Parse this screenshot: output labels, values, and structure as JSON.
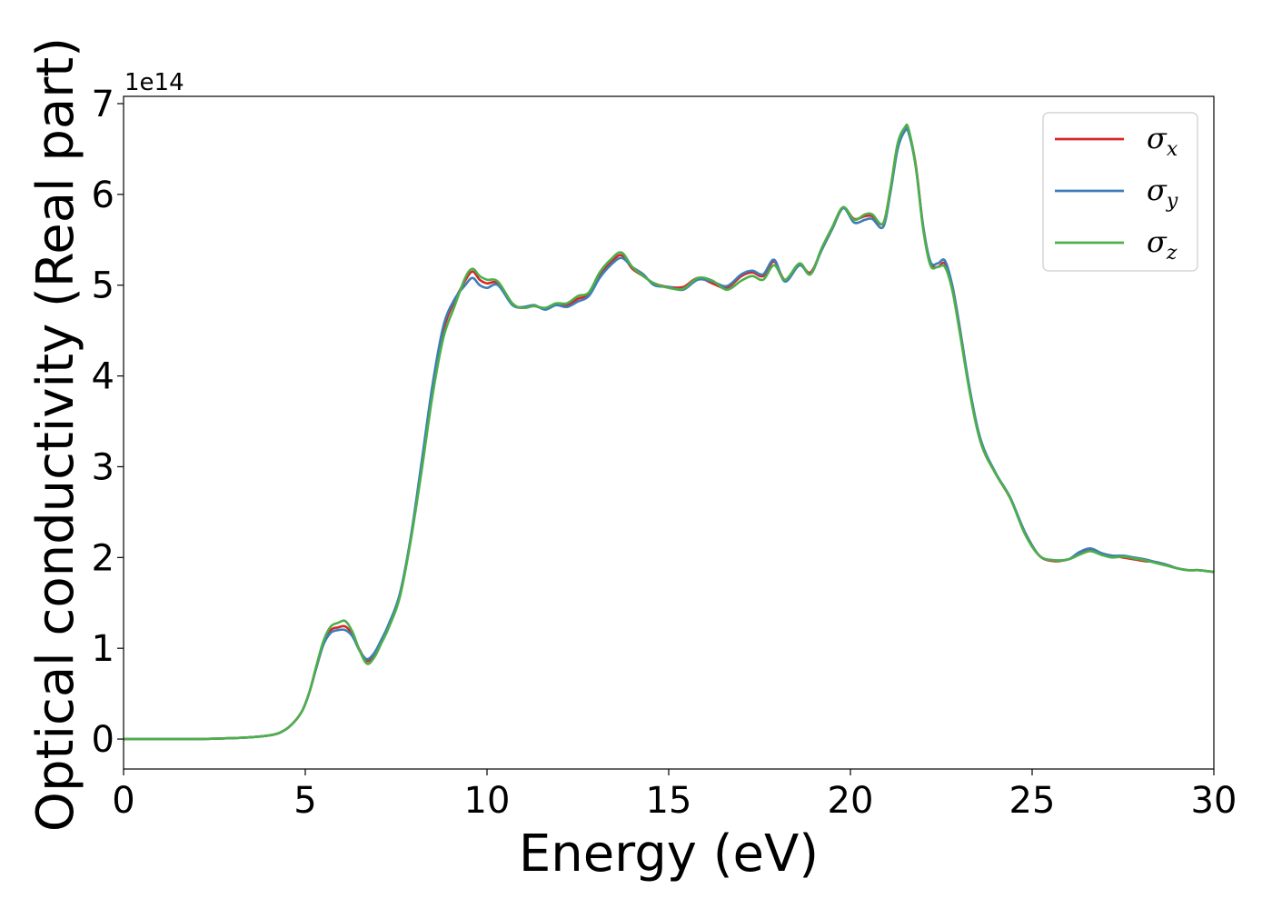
{
  "chart_data": {
    "type": "line",
    "xlabel": "Energy (eV)",
    "ylabel": "Optical conductivity (Real part)",
    "offset_label": "1e14",
    "xlim": [
      0,
      30
    ],
    "ylim": [
      -0.33,
      7.08
    ],
    "y_scale_factor": 100000000000000.0,
    "xticks": [
      0,
      5,
      10,
      15,
      20,
      25,
      30
    ],
    "yticks": [
      0,
      1,
      2,
      3,
      4,
      5,
      6,
      7
    ],
    "grid": false,
    "legend": {
      "position": "top-right",
      "entries": [
        {
          "symbol": "σ",
          "sub": "x"
        },
        {
          "symbol": "σ",
          "sub": "y"
        },
        {
          "symbol": "σ",
          "sub": "z"
        }
      ]
    },
    "series": [
      {
        "name": "σx",
        "color": "#d62728",
        "x": [
          0,
          1,
          2,
          3,
          3.5,
          4,
          4.3,
          4.6,
          4.9,
          5.1,
          5.3,
          5.5,
          5.7,
          5.9,
          6.1,
          6.3,
          6.5,
          6.7,
          6.9,
          7.1,
          7.3,
          7.6,
          7.9,
          8.2,
          8.5,
          8.8,
          9.1,
          9.4,
          9.6,
          9.8,
          10,
          10.3,
          10.7,
          11,
          11.3,
          11.6,
          11.9,
          12.2,
          12.5,
          12.8,
          13.1,
          13.4,
          13.7,
          14,
          14.3,
          14.6,
          15,
          15.4,
          15.8,
          16.2,
          16.6,
          17,
          17.3,
          17.6,
          17.9,
          18.2,
          18.6,
          18.9,
          19.2,
          19.5,
          19.8,
          20.1,
          20.4,
          20.6,
          20.9,
          21.1,
          21.3,
          21.5,
          21.6,
          21.8,
          22,
          22.2,
          22.4,
          22.6,
          22.8,
          23,
          23.3,
          23.6,
          24,
          24.4,
          24.8,
          25.2,
          25.6,
          26,
          26.3,
          26.6,
          26.9,
          27.2,
          27.5,
          27.8,
          28.1,
          28.4,
          28.7,
          29,
          29.3,
          29.6,
          30
        ],
        "y": [
          0,
          0,
          0,
          0.01,
          0.02,
          0.04,
          0.07,
          0.15,
          0.3,
          0.5,
          0.78,
          1.05,
          1.2,
          1.23,
          1.24,
          1.15,
          0.98,
          0.86,
          0.92,
          1.08,
          1.25,
          1.58,
          2.2,
          3.0,
          3.85,
          4.5,
          4.82,
          5.05,
          5.15,
          5.06,
          5.02,
          5.02,
          4.79,
          4.75,
          4.77,
          4.74,
          4.79,
          4.78,
          4.85,
          4.9,
          5.12,
          5.25,
          5.33,
          5.18,
          5.1,
          5.02,
          4.98,
          4.98,
          5.08,
          5.02,
          4.97,
          5.1,
          5.14,
          5.1,
          5.26,
          5.06,
          5.22,
          5.14,
          5.38,
          5.62,
          5.85,
          5.73,
          5.76,
          5.76,
          5.68,
          6.06,
          6.55,
          6.72,
          6.7,
          6.32,
          5.65,
          5.25,
          5.2,
          5.24,
          5.0,
          4.55,
          3.8,
          3.25,
          2.92,
          2.65,
          2.28,
          2.02,
          1.96,
          1.98,
          2.04,
          2.08,
          2.04,
          2.02,
          2.0,
          1.98,
          1.96,
          1.95,
          1.92,
          1.88,
          1.86,
          1.86,
          1.84
        ]
      },
      {
        "name": "σy",
        "color": "#3d7eb8",
        "x": [
          0,
          1,
          2,
          3,
          3.5,
          4,
          4.3,
          4.6,
          4.9,
          5.1,
          5.3,
          5.5,
          5.7,
          5.9,
          6.1,
          6.3,
          6.5,
          6.7,
          6.9,
          7.1,
          7.3,
          7.6,
          7.9,
          8.2,
          8.5,
          8.8,
          9.1,
          9.4,
          9.6,
          9.8,
          10,
          10.3,
          10.7,
          11,
          11.3,
          11.6,
          11.9,
          12.2,
          12.5,
          12.8,
          13.1,
          13.4,
          13.7,
          14,
          14.3,
          14.6,
          15,
          15.4,
          15.8,
          16.2,
          16.6,
          17,
          17.3,
          17.6,
          17.9,
          18.2,
          18.6,
          18.9,
          19.2,
          19.5,
          19.8,
          20.1,
          20.4,
          20.6,
          20.9,
          21.1,
          21.3,
          21.5,
          21.6,
          21.8,
          22,
          22.2,
          22.4,
          22.6,
          22.8,
          23,
          23.3,
          23.6,
          24,
          24.4,
          24.8,
          25.2,
          25.6,
          26,
          26.3,
          26.6,
          26.9,
          27.2,
          27.5,
          27.8,
          28.1,
          28.4,
          28.7,
          29,
          29.3,
          29.6,
          30
        ],
        "y": [
          0,
          0,
          0,
          0.01,
          0.02,
          0.04,
          0.07,
          0.15,
          0.3,
          0.5,
          0.78,
          1.04,
          1.17,
          1.2,
          1.2,
          1.13,
          0.97,
          0.88,
          0.95,
          1.1,
          1.27,
          1.6,
          2.22,
          3.05,
          3.9,
          4.55,
          4.84,
          5.0,
          5.08,
          5.0,
          4.97,
          5.0,
          4.78,
          4.76,
          4.78,
          4.73,
          4.78,
          4.76,
          4.82,
          4.88,
          5.08,
          5.22,
          5.3,
          5.2,
          5.12,
          5.0,
          4.98,
          4.95,
          5.06,
          5.04,
          4.99,
          5.12,
          5.16,
          5.12,
          5.28,
          5.04,
          5.22,
          5.12,
          5.38,
          5.62,
          5.85,
          5.69,
          5.72,
          5.73,
          5.64,
          6.02,
          6.5,
          6.7,
          6.68,
          6.3,
          5.65,
          5.26,
          5.24,
          5.27,
          5.0,
          4.55,
          3.82,
          3.28,
          2.93,
          2.66,
          2.28,
          2.02,
          1.97,
          1.98,
          2.06,
          2.1,
          2.05,
          2.02,
          2.02,
          2.0,
          1.98,
          1.95,
          1.92,
          1.88,
          1.86,
          1.86,
          1.84
        ]
      },
      {
        "name": "σz",
        "color": "#4daf4a",
        "x": [
          0,
          1,
          2,
          3,
          3.5,
          4,
          4.3,
          4.6,
          4.9,
          5.1,
          5.3,
          5.5,
          5.7,
          5.9,
          6.1,
          6.3,
          6.5,
          6.7,
          6.9,
          7.1,
          7.3,
          7.6,
          7.9,
          8.2,
          8.5,
          8.8,
          9.1,
          9.4,
          9.6,
          9.8,
          10,
          10.3,
          10.7,
          11,
          11.3,
          11.6,
          11.9,
          12.2,
          12.5,
          12.8,
          13.1,
          13.4,
          13.7,
          14,
          14.3,
          14.6,
          15,
          15.4,
          15.8,
          16.2,
          16.6,
          17,
          17.3,
          17.6,
          17.9,
          18.2,
          18.6,
          18.9,
          19.2,
          19.5,
          19.8,
          20.1,
          20.4,
          20.6,
          20.9,
          21.1,
          21.3,
          21.5,
          21.6,
          21.8,
          22,
          22.2,
          22.4,
          22.6,
          22.8,
          23,
          23.3,
          23.6,
          24,
          24.4,
          24.8,
          25.2,
          25.6,
          26,
          26.3,
          26.6,
          26.9,
          27.2,
          27.5,
          27.8,
          28.1,
          28.4,
          28.7,
          29,
          29.3,
          29.6,
          30
        ],
        "y": [
          0,
          0,
          0,
          0.01,
          0.02,
          0.04,
          0.07,
          0.15,
          0.3,
          0.5,
          0.8,
          1.08,
          1.24,
          1.28,
          1.3,
          1.18,
          0.97,
          0.83,
          0.9,
          1.06,
          1.23,
          1.56,
          2.18,
          2.95,
          3.78,
          4.42,
          4.76,
          5.08,
          5.18,
          5.1,
          5.06,
          5.04,
          4.8,
          4.75,
          4.77,
          4.75,
          4.8,
          4.8,
          4.88,
          4.92,
          5.14,
          5.28,
          5.36,
          5.2,
          5.1,
          5.02,
          4.97,
          4.96,
          5.08,
          5.05,
          4.95,
          5.05,
          5.1,
          5.06,
          5.22,
          5.06,
          5.24,
          5.12,
          5.4,
          5.64,
          5.86,
          5.72,
          5.78,
          5.78,
          5.68,
          6.06,
          6.56,
          6.74,
          6.72,
          6.3,
          5.62,
          5.22,
          5.2,
          5.2,
          4.95,
          4.5,
          3.78,
          3.25,
          2.92,
          2.65,
          2.26,
          2.02,
          1.97,
          1.98,
          2.03,
          2.07,
          2.03,
          2.0,
          2.01,
          1.99,
          1.97,
          1.94,
          1.91,
          1.88,
          1.86,
          1.86,
          1.84
        ]
      }
    ]
  }
}
